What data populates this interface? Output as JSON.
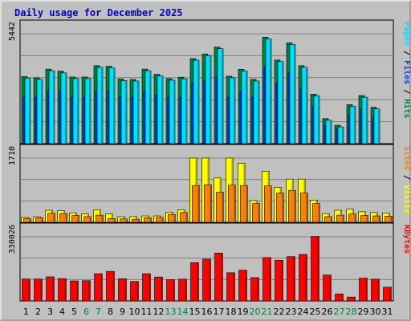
{
  "title": "Daily usage for December 2025",
  "colors": {
    "background": "#c0c0c0",
    "plot_bg": "#c0c0c0",
    "title": "#0000cc",
    "hits": "#008040",
    "files": "#0040ff",
    "pages": "#00e0ff",
    "visits": "#ffff00",
    "sites": "#ff8000",
    "kbytes": "#ff0000",
    "weekend_label": "#008040",
    "weekday_label": "#000000",
    "grid": "#000000"
  },
  "chart_data": {
    "type": "bar",
    "x": [
      "1",
      "2",
      "3",
      "4",
      "5",
      "6",
      "7",
      "8",
      "9",
      "10",
      "11",
      "12",
      "13",
      "14",
      "15",
      "16",
      "17",
      "18",
      "19",
      "20",
      "21",
      "22",
      "23",
      "24",
      "25",
      "26",
      "27",
      "28",
      "29",
      "30",
      "31"
    ],
    "weekend_days": [
      "6",
      "7",
      "13",
      "14",
      "20",
      "21",
      "27",
      "28"
    ],
    "panels": [
      {
        "name": "top",
        "ymax_label": "5442",
        "ymax": 5442,
        "ylabel_parts": [
          {
            "text": "Pages",
            "color_key": "pages"
          },
          {
            "text": " / ",
            "color_key": "grid"
          },
          {
            "text": "Files",
            "color_key": "files"
          },
          {
            "text": " / ",
            "color_key": "grid"
          },
          {
            "text": "Hits",
            "color_key": "hits"
          }
        ],
        "series": [
          {
            "name": "Hits",
            "color_key": "hits",
            "values": [
              3320,
              3260,
              3690,
              3590,
              3300,
              3300,
              3860,
              3830,
              3200,
              3180,
              3690,
              3430,
              3220,
              3290,
              4210,
              4440,
              4780,
              3340,
              3680,
              3180,
              5270,
              4140,
              4990,
              3860,
              2450,
              1240,
              910,
              1930,
              2380,
              1800,
              0
            ]
          },
          {
            "name": "Files",
            "color_key": "files",
            "values": [
              2300,
              2300,
              2600,
              2600,
              2300,
              2300,
              2600,
              2600,
              2300,
              2300,
              2600,
              2400,
              2300,
              2300,
              3000,
              3100,
              3300,
              2300,
              2600,
              2300,
              3800,
              3000,
              3500,
              2700,
              1800,
              900,
              700,
              1400,
              1700,
              1300,
              0
            ]
          },
          {
            "name": "Pages",
            "color_key": "pages",
            "values": [
              3240,
              3180,
              3610,
              3500,
              3220,
              3220,
              3780,
              3750,
              3120,
              3100,
              3610,
              3350,
              3140,
              3210,
              4130,
              4360,
              4700,
              3260,
              3600,
              3100,
              5190,
              4060,
              4910,
              3780,
              2370,
              1160,
              830,
              1850,
              2300,
              1720,
              0
            ]
          }
        ]
      },
      {
        "name": "middle",
        "ymax_label": "1710",
        "ymax": 1710,
        "ylabel_parts": [
          {
            "text": "Sites",
            "color_key": "sites"
          },
          {
            "text": " / ",
            "color_key": "grid"
          },
          {
            "text": "Visits",
            "color_key": "visits"
          }
        ],
        "series": [
          {
            "name": "Visits",
            "color_key": "visits",
            "values": [
              130,
              150,
              320,
              310,
              250,
              220,
              330,
              220,
              150,
              150,
              170,
              170,
              270,
              330,
              1710,
              1710,
              1180,
              1710,
              1570,
              580,
              1360,
              930,
              1150,
              1150,
              590,
              230,
              320,
              350,
              280,
              260,
              250
            ]
          },
          {
            "name": "Sites",
            "color_key": "sites",
            "values": [
              100,
              120,
              240,
              230,
              180,
              150,
              190,
              100,
              90,
              80,
              120,
              130,
              210,
              260,
              980,
              1000,
              800,
              990,
              980,
              500,
              970,
              780,
              850,
              780,
              500,
              150,
              190,
              220,
              180,
              170,
              160
            ]
          }
        ]
      },
      {
        "name": "bottom",
        "ymax_label": "330026",
        "ymax": 330026,
        "ylabel_parts": [
          {
            "text": "KBytes",
            "color_key": "kbytes"
          }
        ],
        "series": [
          {
            "name": "KBytes",
            "color_key": "kbytes",
            "values": [
              113000,
              113000,
              124000,
              115000,
              103000,
              104000,
              140000,
              152000,
              114000,
              100000,
              140000,
              123000,
              109000,
              112000,
              197000,
              215000,
              246000,
              145000,
              158000,
              120000,
              223000,
              209000,
              228000,
              239000,
              332000,
              133000,
              36000,
              20000,
              117000,
              112000,
              71000
            ]
          }
        ]
      }
    ]
  }
}
